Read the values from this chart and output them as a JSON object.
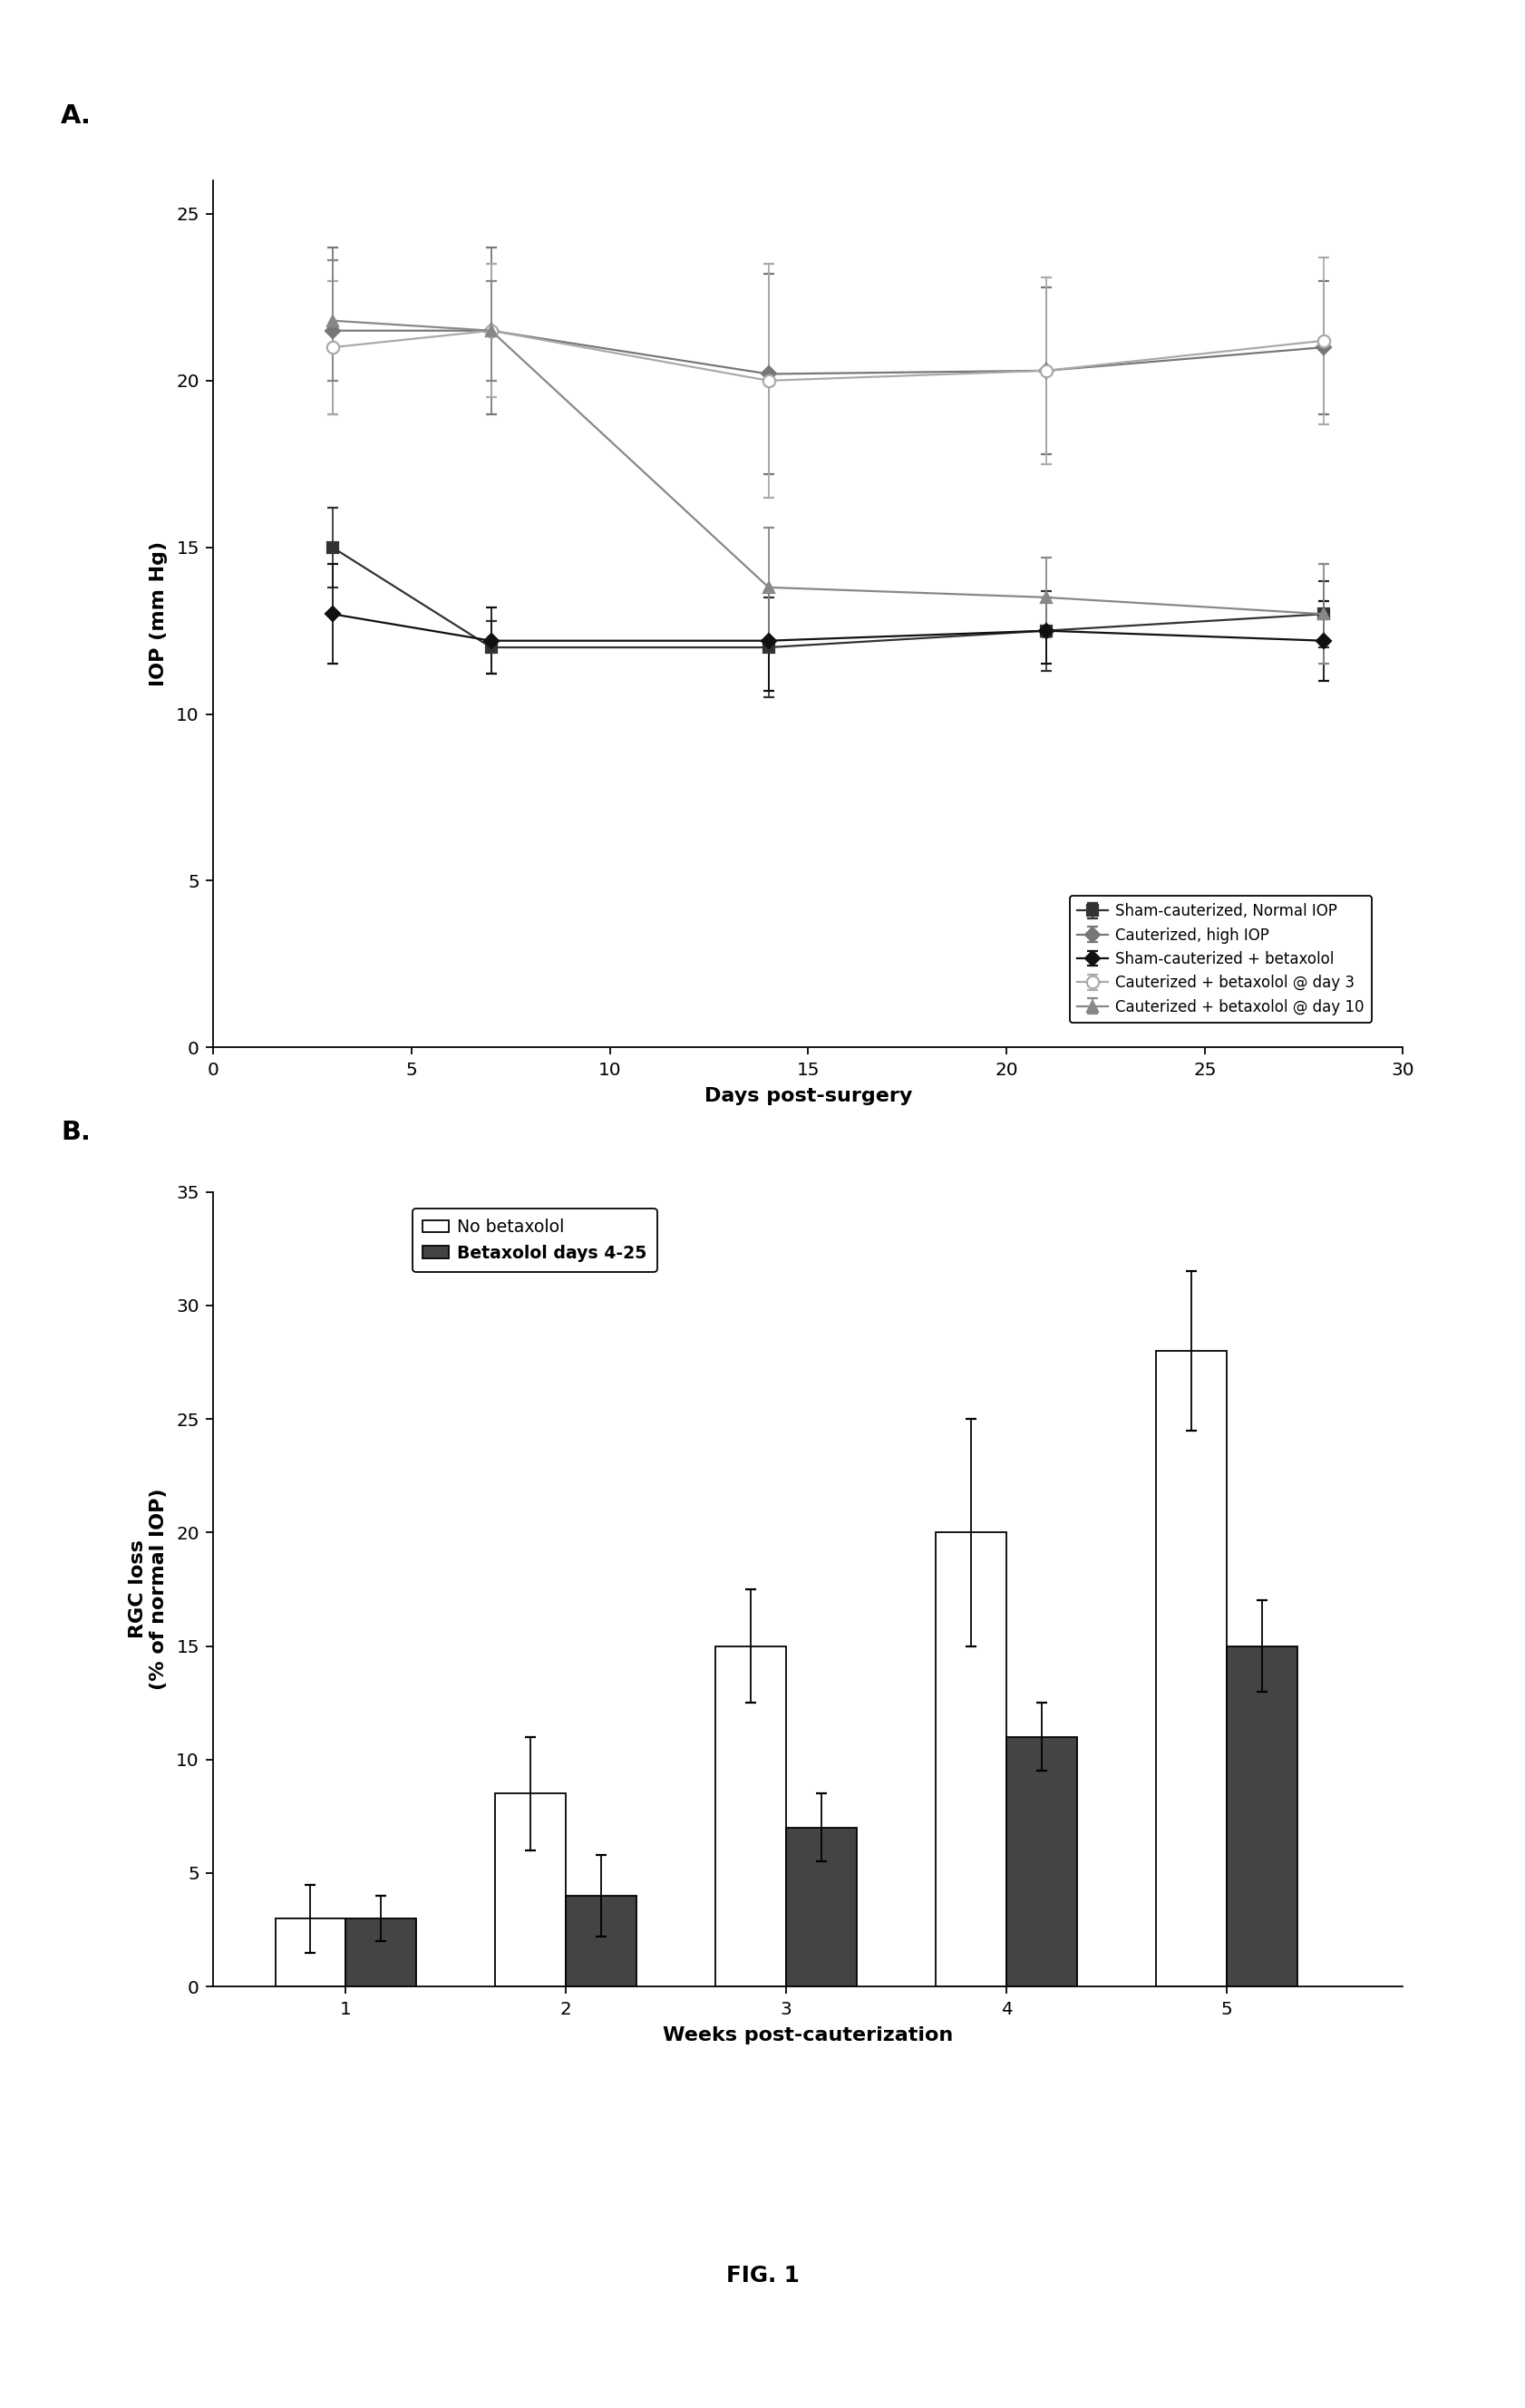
{
  "panel_A": {
    "xlabel": "Days post-surgery",
    "ylabel": "IOP (mm Hg)",
    "xlim": [
      0,
      30
    ],
    "ylim": [
      0,
      26
    ],
    "xticks": [
      0,
      5,
      10,
      15,
      20,
      25,
      30
    ],
    "yticks": [
      0,
      5,
      10,
      15,
      20,
      25
    ],
    "series": [
      {
        "label": "Sham-cauterized, Normal IOP",
        "x": [
          3,
          7,
          14,
          21,
          28
        ],
        "y": [
          15.0,
          12.0,
          12.0,
          12.5,
          13.0
        ],
        "yerr": [
          1.2,
          0.8,
          1.5,
          1.2,
          1.0
        ],
        "color": "#333333",
        "marker": "s",
        "linestyle": "-",
        "markersize": 5,
        "markerfacecolor": "#333333"
      },
      {
        "label": "Cauterized, high IOP",
        "x": [
          3,
          7,
          14,
          21,
          28
        ],
        "y": [
          21.5,
          21.5,
          20.2,
          20.3,
          21.0
        ],
        "yerr": [
          2.5,
          2.5,
          3.0,
          2.5,
          2.0
        ],
        "color": "#777777",
        "marker": "D",
        "linestyle": "-",
        "markersize": 5,
        "markerfacecolor": "#777777"
      },
      {
        "label": "Sham-cauterized + betaxolol",
        "x": [
          3,
          7,
          14,
          21,
          28
        ],
        "y": [
          13.0,
          12.2,
          12.2,
          12.5,
          12.2
        ],
        "yerr": [
          1.5,
          1.0,
          1.5,
          1.0,
          1.2
        ],
        "color": "#111111",
        "marker": "D",
        "linestyle": "-",
        "markersize": 5,
        "markerfacecolor": "#111111"
      },
      {
        "label": "Cauterized + betaxolol @ day 3",
        "x": [
          3,
          7,
          14,
          21,
          28
        ],
        "y": [
          21.0,
          21.5,
          20.0,
          20.3,
          21.2
        ],
        "yerr": [
          2.0,
          2.0,
          3.5,
          2.8,
          2.5
        ],
        "color": "#aaaaaa",
        "marker": "o",
        "linestyle": "-",
        "markersize": 6,
        "markerfacecolor": "white"
      },
      {
        "label": "Cauterized + betaxolol @ day 10",
        "x": [
          3,
          7,
          14,
          21,
          28
        ],
        "y": [
          21.8,
          21.5,
          13.8,
          13.5,
          13.0
        ],
        "yerr": [
          1.8,
          1.5,
          1.8,
          1.2,
          1.5
        ],
        "color": "#888888",
        "marker": "^",
        "linestyle": "-",
        "markersize": 5,
        "markerfacecolor": "#888888"
      }
    ],
    "legend_labels": [
      "Sham-cauterized, Normal IOP",
      "Cauterized, high IOP",
      "Sham-cauterized + betaxolol",
      "Cauterized + betaxolol @ day 3",
      "Cauterized + betaxolol @ day 10"
    ]
  },
  "panel_B": {
    "xlabel": "Weeks post-cauterization",
    "ylabel": "RGC loss\n(% of normal IOP)",
    "xlim": [
      0.4,
      5.8
    ],
    "ylim": [
      0,
      35
    ],
    "xticks": [
      1,
      2,
      3,
      4,
      5
    ],
    "yticks": [
      0,
      5,
      10,
      15,
      20,
      25,
      30,
      35
    ],
    "bar_width": 0.32,
    "series": [
      {
        "label": "No betaxolol",
        "weeks": [
          1,
          2,
          3,
          4,
          5
        ],
        "values": [
          3.0,
          8.5,
          15.0,
          20.0,
          28.0
        ],
        "yerr": [
          1.5,
          2.5,
          2.5,
          5.0,
          3.5
        ],
        "color": "white",
        "edgecolor": "black"
      },
      {
        "label": "Betaxolol days 4-25",
        "weeks": [
          1,
          2,
          3,
          4,
          5
        ],
        "values": [
          3.0,
          4.0,
          7.0,
          11.0,
          15.0
        ],
        "yerr": [
          1.0,
          1.8,
          1.5,
          1.5,
          2.0
        ],
        "color": "#444444",
        "edgecolor": "black"
      }
    ]
  },
  "figure_label": "FIG. 1"
}
